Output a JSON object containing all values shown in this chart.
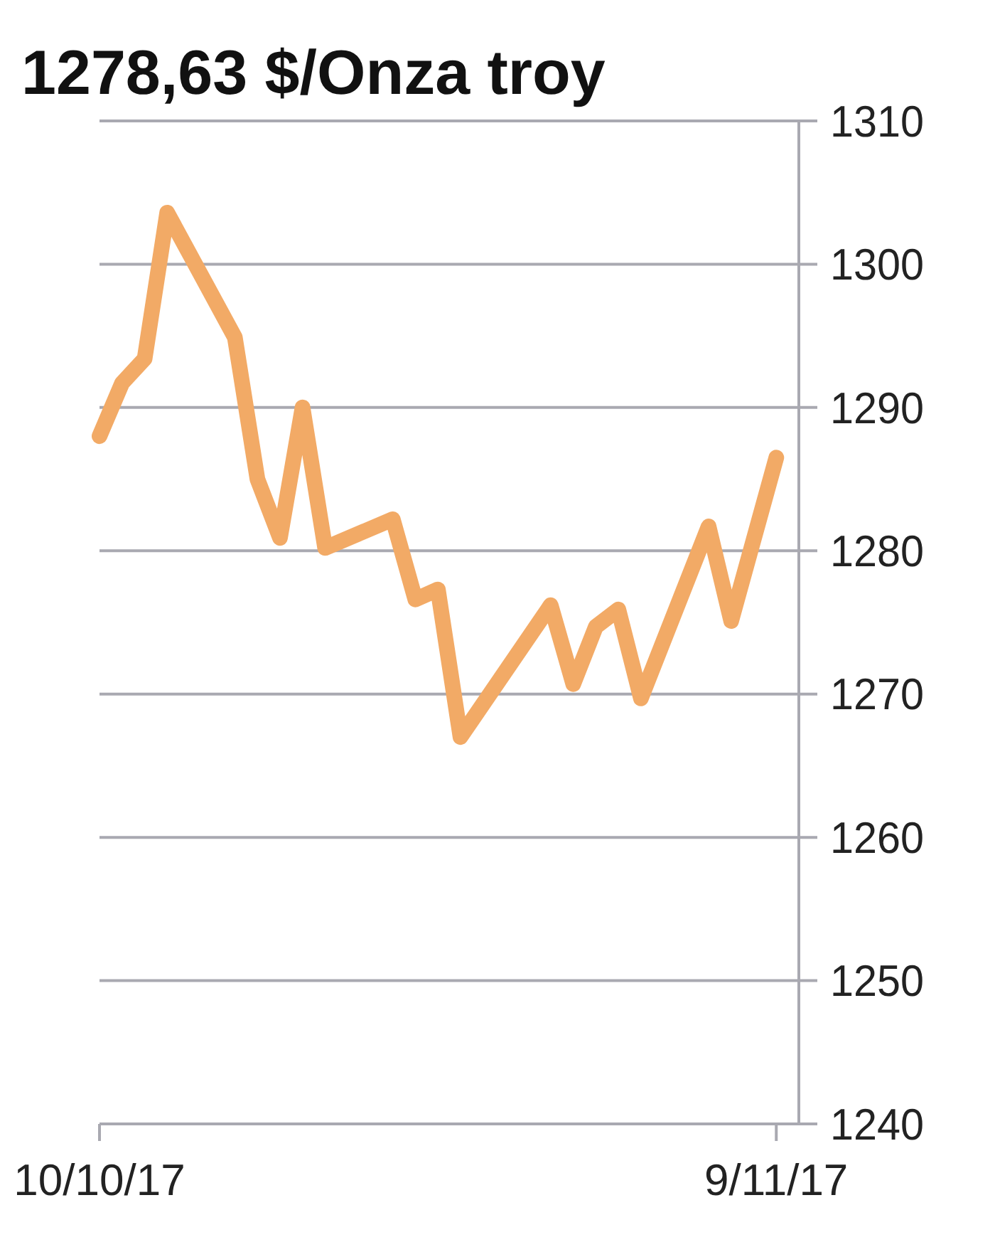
{
  "chart_data": {
    "type": "line",
    "title": "1278,63 $/Onza troy",
    "x": [
      "2017-10-10",
      "2017-10-11",
      "2017-10-12",
      "2017-10-13",
      "2017-10-16",
      "2017-10-17",
      "2017-10-18",
      "2017-10-19",
      "2017-10-20",
      "2017-10-23",
      "2017-10-24",
      "2017-10-25",
      "2017-10-26",
      "2017-10-30",
      "2017-10-31",
      "2017-11-01",
      "2017-11-02",
      "2017-11-03",
      "2017-11-06",
      "2017-11-07",
      "2017-11-09"
    ],
    "series": [
      {
        "color": "#f2aa66",
        "values": [
          1288,
          1291.7,
          1293.4,
          1303.6,
          1294.9,
          1285,
          1280.9,
          1290,
          1280.2,
          1282.2,
          1276.6,
          1277.3,
          1267,
          1276.2,
          1270.7,
          1274.7,
          1275.9,
          1269.7,
          1281.7,
          1275.1,
          1286.5
        ]
      }
    ],
    "xlim": [
      "2017-10-10",
      "2017-11-10"
    ],
    "xticks": [
      {
        "value": "2017-10-10",
        "label": "10/10/17"
      },
      {
        "value": "2017-11-09",
        "label": "9/11/17"
      }
    ],
    "ylim": [
      1240,
      1310
    ],
    "yticks": [
      1240,
      1250,
      1260,
      1270,
      1280,
      1290,
      1300,
      1310
    ],
    "grid": "y",
    "marker": "none",
    "line_style": "solid"
  }
}
